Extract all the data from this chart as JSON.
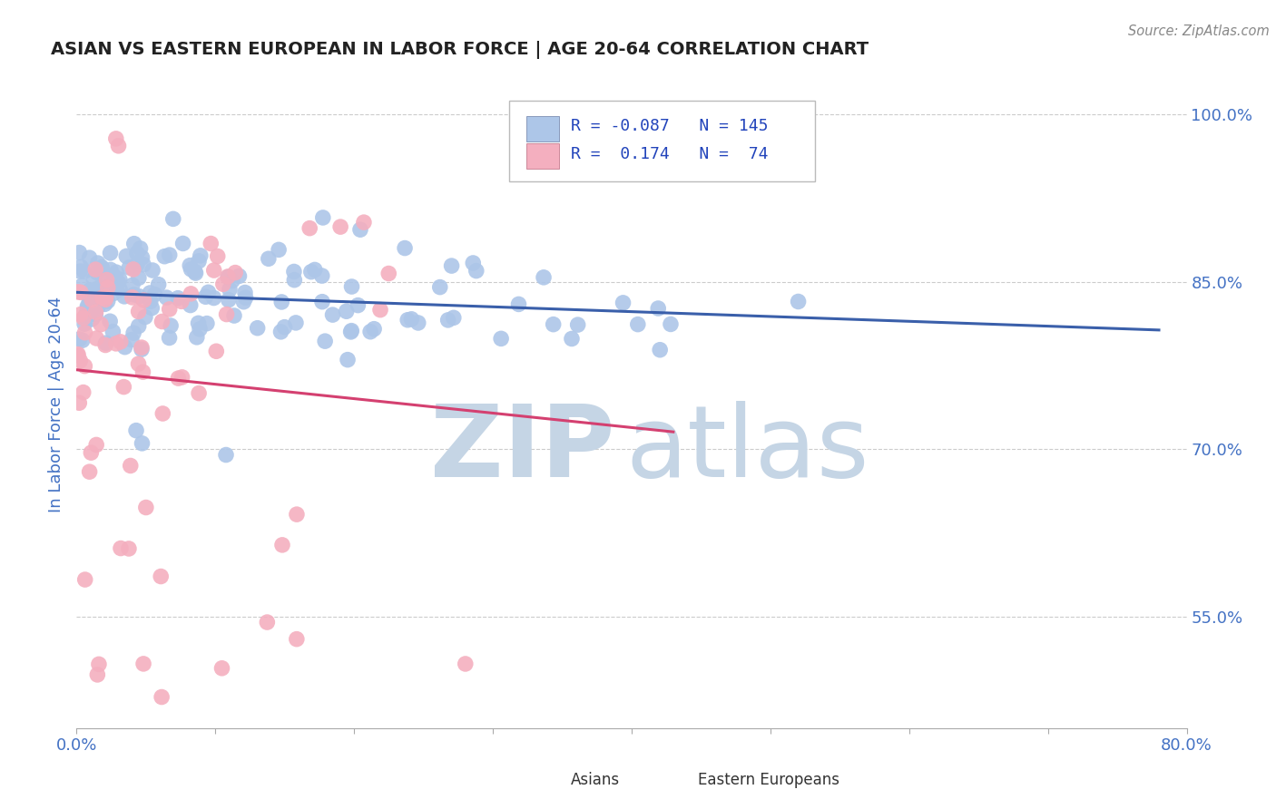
{
  "title": "ASIAN VS EASTERN EUROPEAN IN LABOR FORCE | AGE 20-64 CORRELATION CHART",
  "source": "Source: ZipAtlas.com",
  "ylabel": "In Labor Force | Age 20-64",
  "x_min": 0.0,
  "x_max": 0.8,
  "y_min": 0.45,
  "y_max": 1.03,
  "y_ticks": [
    0.55,
    0.7,
    0.85,
    1.0
  ],
  "y_tick_labels": [
    "55.0%",
    "70.0%",
    "85.0%",
    "100.0%"
  ],
  "R_asian": -0.087,
  "N_asian": 145,
  "R_eastern": 0.174,
  "N_eastern": 74,
  "asian_color": "#adc6e8",
  "eastern_color": "#f4afbf",
  "asian_line_color": "#3a5faa",
  "eastern_line_color": "#d44070",
  "watermark_zip_color": "#c5d5e5",
  "watermark_atlas_color": "#c5d5e5",
  "background_color": "#ffffff",
  "grid_color": "#cccccc",
  "title_color": "#222222",
  "tick_label_color": "#4472c4",
  "legend_text_color": "#2244bb",
  "source_color": "#888888"
}
